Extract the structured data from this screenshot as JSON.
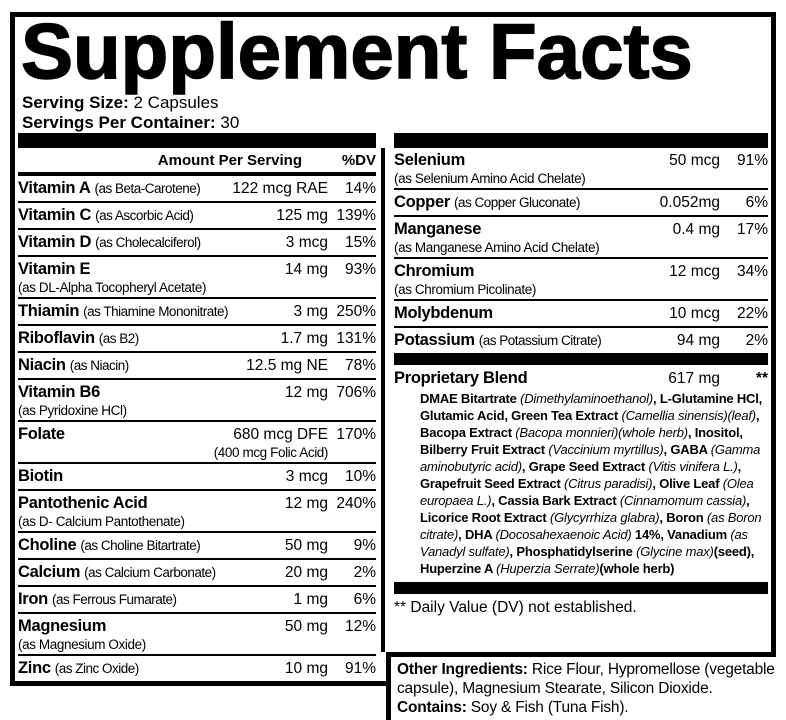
{
  "label": {
    "title": "Supplement Facts",
    "serving_size_label": "Serving Size:",
    "serving_size_value": " 2 Capsules",
    "servings_label": "Servings Per Container:",
    "servings_value": " 30",
    "column_header": {
      "amount": "Amount Per Serving",
      "dv": "%DV"
    },
    "left_rows": [
      {
        "name": "Vitamin A",
        "as": "(as Beta-Carotene)",
        "as_pos": "inline",
        "amount": "122 mcg RAE",
        "dv": "14%"
      },
      {
        "name": "Vitamin C",
        "as": "(as Ascorbic Acid)",
        "as_pos": "inline",
        "amount": "125 mg",
        "dv": "139%"
      },
      {
        "name": "Vitamin D",
        "as": "(as Cholecalciferol)",
        "as_pos": "inline",
        "amount": "3 mcg",
        "dv": "15%"
      },
      {
        "name": "Vitamin E",
        "as": "(as DL-Alpha Tocopheryl Acetate)",
        "as_pos": "below",
        "amount": "14 mg",
        "dv": "93%"
      },
      {
        "name": "Thiamin",
        "as": "(as Thiamine Mononitrate)",
        "as_pos": "inline",
        "amount": "3 mg",
        "dv": "250%"
      },
      {
        "name": "Riboflavin",
        "as": "(as B2)",
        "as_pos": "inline",
        "amount": "1.7 mg",
        "dv": "131%"
      },
      {
        "name": "Niacin",
        "as": "(as Niacin)",
        "as_pos": "inline",
        "amount": "12.5 mg NE",
        "dv": "78%"
      },
      {
        "name": "Vitamin B6",
        "as": "(as Pyridoxine HCl)",
        "as_pos": "below",
        "amount": "12 mg",
        "dv": "706%"
      },
      {
        "name": "Folate",
        "amount": "680 mcg DFE",
        "amount_sub": "(400 mcg Folic Acid)",
        "dv": "170%"
      },
      {
        "name": "Biotin",
        "amount": "3 mcg",
        "dv": "10%"
      },
      {
        "name": "Pantothenic Acid",
        "as": "(as D- Calcium Pantothenate)",
        "as_pos": "below",
        "amount": "12 mg",
        "dv": "240%"
      },
      {
        "name": "Choline",
        "as": "(as Choline Bitartrate)",
        "as_pos": "inline",
        "amount": "50 mg",
        "dv": "9%"
      },
      {
        "name": "Calcium",
        "as": "(as Calcium Carbonate)",
        "as_pos": "inline",
        "amount": "20 mg",
        "dv": "2%"
      },
      {
        "name": "Iron",
        "as": "(as Ferrous Fumarate)",
        "as_pos": "inline",
        "amount": "1 mg",
        "dv": "6%"
      },
      {
        "name": "Magnesium",
        "as": "(as Magnesium Oxide)",
        "as_pos": "below",
        "amount": "50 mg",
        "dv": "12%"
      },
      {
        "name": "Zinc",
        "as": "(as Zinc Oxide)",
        "as_pos": "inline",
        "amount": "10 mg",
        "dv": "91%"
      }
    ],
    "right_rows": [
      {
        "name": "Selenium",
        "as": "(as Selenium Amino Acid Chelate)",
        "as_pos": "below",
        "amount": "50 mcg",
        "dv": "91%"
      },
      {
        "name": "Copper",
        "as": "(as Copper Gluconate)",
        "as_pos": "inline",
        "amount": "0.052mg",
        "dv": "6%"
      },
      {
        "name": "Manganese",
        "as": "(as Manganese Amino Acid Chelate)",
        "as_pos": "below",
        "amount": "0.4 mg",
        "dv": "17%"
      },
      {
        "name": "Chromium",
        "as": "(as Chromium Picolinate)",
        "as_pos": "below",
        "amount": "12 mcg",
        "dv": "34%"
      },
      {
        "name": "Molybdenum",
        "amount": "10 mcg",
        "dv": "22%"
      },
      {
        "name": "Potassium",
        "as": "(as Potassium Citrate)",
        "as_pos": "inline",
        "amount": "94 mg",
        "dv": "2%"
      }
    ],
    "proprietary_blend": {
      "name": "Proprietary Blend",
      "amount": "617 mg",
      "dv": "**",
      "ingredients": [
        {
          "t": "DMAE Bitartrate ",
          "s": "b"
        },
        {
          "t": "(Dimethylaminoethanol)",
          "s": "i"
        },
        {
          "t": ", L-Glutamine HCl, Glutamic Acid, Green Tea Extract ",
          "s": "b"
        },
        {
          "t": "(Camellia sinensis)(leaf)",
          "s": "i"
        },
        {
          "t": ", Bacopa Extract ",
          "s": "b"
        },
        {
          "t": "(Bacopa monnieri)(whole herb)",
          "s": "i"
        },
        {
          "t": ", Inositol, Bilberry Fruit Extract ",
          "s": "b"
        },
        {
          "t": "(Vaccinium myrtillus)",
          "s": "i"
        },
        {
          "t": ", GABA ",
          "s": "b"
        },
        {
          "t": "(Gamma aminobutyric acid)",
          "s": "i"
        },
        {
          "t": ", Grape Seed Extract ",
          "s": "b"
        },
        {
          "t": "(Vitis vinifera L.)",
          "s": "i"
        },
        {
          "t": ", Grapefruit Seed Extract ",
          "s": "b"
        },
        {
          "t": "(Citrus paradisi)",
          "s": "i"
        },
        {
          "t": ", Olive Leaf ",
          "s": "b"
        },
        {
          "t": "(Olea europaea L.)",
          "s": "i"
        },
        {
          "t": ", Cassia Bark Extract ",
          "s": "b"
        },
        {
          "t": "(Cinnamomum cassia)",
          "s": "i"
        },
        {
          "t": ", Licorice Root Extract ",
          "s": "b"
        },
        {
          "t": "(Glycyrrhiza glabra)",
          "s": "i"
        },
        {
          "t": ", Boron ",
          "s": "b"
        },
        {
          "t": "(as Boron citrate)",
          "s": "i"
        },
        {
          "t": ", DHA ",
          "s": "b"
        },
        {
          "t": "(Docosahexaenoic Acid)",
          "s": "i"
        },
        {
          "t": " 14%, Vanadium ",
          "s": "b"
        },
        {
          "t": "(as Vanadyl sulfate)",
          "s": "i"
        },
        {
          "t": ", Phosphatidylserine ",
          "s": "b"
        },
        {
          "t": "(Glycine max)",
          "s": "i"
        },
        {
          "t": "(seed), Huperzine A ",
          "s": "b"
        },
        {
          "t": "(Huperzia Serrate)",
          "s": "i"
        },
        {
          "t": "(whole herb)",
          "s": "b"
        }
      ]
    },
    "footnote": "** Daily Value (DV) not established.",
    "other_ingredients_label": "Other Ingredients:",
    "other_ingredients_value": " Rice Flour, Hypromellose (vegetable capsule), Magnesium Stearate, Silicon Dioxide.",
    "contains_label": "Contains:",
    "contains_value": " Soy & Fish (Tuna Fish).",
    "colors": {
      "ink": "#000000",
      "paper": "#ffffff"
    }
  }
}
